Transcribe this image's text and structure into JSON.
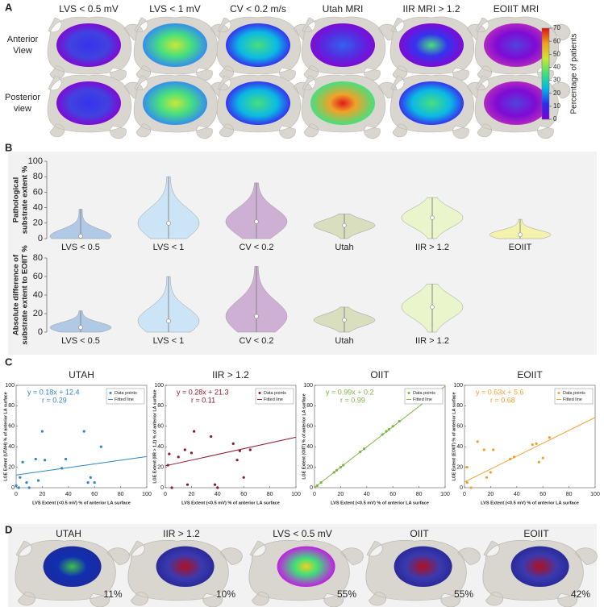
{
  "panel_labels": [
    "A",
    "B",
    "C",
    "D"
  ],
  "panel_a": {
    "columns": [
      "LVS < 0.5 mV",
      "LVS < 1 mV",
      "CV < 0.2 m/s",
      "Utah MRI",
      "IIR MRI > 1.2",
      "EOIIT MRI"
    ],
    "rows": [
      [
        "Anterior",
        "View"
      ],
      [
        "Posterior",
        "view"
      ]
    ],
    "colorbar": {
      "label": "Percentage of patients",
      "lim": [
        0,
        70
      ],
      "ticks": [
        0,
        10,
        20,
        30,
        40,
        50,
        60,
        70
      ],
      "colors": [
        "#7a00d4",
        "#2b2bf0",
        "#00b7e6",
        "#3fe07a",
        "#c8e830",
        "#f0a020",
        "#e01010"
      ]
    }
  },
  "chart_data": [
    {
      "type": "violin",
      "ylabel": [
        "Pathological",
        "substrate extent %"
      ],
      "categories": [
        "LVS < 0.5",
        "LVS < 1",
        "CV < 0.2",
        "Utah",
        "IIR > 1.2",
        "EOIIT"
      ],
      "min": [
        0,
        0,
        0,
        0,
        0,
        0
      ],
      "median": [
        3,
        20,
        22,
        17,
        27,
        5
      ],
      "max": [
        38,
        80,
        72,
        32,
        53,
        25
      ],
      "colors": [
        "#a9c4e4",
        "#c7e3f7",
        "#c9a9cf",
        "#d6dcb8",
        "#e9f5c6",
        "#f3f3a6"
      ],
      "ylim": [
        0,
        100
      ],
      "yticks": [
        0,
        20,
        40,
        60,
        80,
        100
      ]
    },
    {
      "type": "violin",
      "ylabel": [
        "Absolute difference of",
        "substrate extent to EOIIT %"
      ],
      "categories": [
        "LVS < 0.5",
        "LVS < 1",
        "CV < 0.2",
        "Utah",
        "IIR > 1.2"
      ],
      "min": [
        0,
        0,
        0,
        0,
        0
      ],
      "median": [
        5,
        12,
        17,
        13,
        27
      ],
      "max": [
        23,
        60,
        71,
        27,
        52
      ],
      "colors": [
        "#a9c4e4",
        "#c7e3f7",
        "#c9a9cf",
        "#d6dcb8",
        "#e9f5c6"
      ],
      "ylim": [
        0,
        80
      ],
      "yticks": [
        0,
        20,
        40,
        60,
        80
      ]
    },
    {
      "type": "scatter",
      "title": "UTAH",
      "xlabel": "LVS Extent (<0.5 mV) % of anterior LA surface",
      "ylabel": "LGE Extent (UTAH) % of anterior LA surface",
      "series": [
        {
          "name": "Data points",
          "color": "#2e86c1",
          "x": [
            0,
            2,
            3,
            5,
            8,
            10,
            15,
            17,
            20,
            22,
            35,
            38,
            52,
            55,
            57,
            60,
            65
          ],
          "values": [
            2,
            0,
            10,
            25,
            5,
            0,
            28,
            7,
            55,
            27,
            19,
            28,
            55,
            5,
            10,
            5,
            40
          ]
        }
      ],
      "fit": {
        "name": "Fitted line",
        "slope": 0.18,
        "intercept": 12.4
      },
      "annotations": [
        "y = 0.18x + 12.4",
        "r = 0.29"
      ],
      "xlim": [
        0,
        100
      ],
      "ylim": [
        0,
        100
      ],
      "xticks": [
        0,
        20,
        40,
        60,
        80,
        100
      ],
      "yticks": [
        0,
        20,
        40,
        60,
        80,
        100
      ]
    },
    {
      "type": "scatter",
      "title": "IIR > 1.2",
      "xlabel": "LVS Extent (<0.5 mV) % of anterior LA surface",
      "ylabel": "LGE Extent (IIR > 1.2) % of anterior LA surface",
      "series": [
        {
          "name": "Data points",
          "color": "#8b1a2b",
          "x": [
            2,
            3,
            5,
            10,
            15,
            17,
            20,
            22,
            35,
            38,
            40,
            52,
            55,
            57,
            60,
            65
          ],
          "values": [
            22,
            33,
            0,
            30,
            37,
            3,
            34,
            55,
            50,
            3,
            0,
            43,
            27,
            36,
            10,
            37
          ]
        }
      ],
      "fit": {
        "name": "Fitted line",
        "slope": 0.28,
        "intercept": 21.3
      },
      "annotations": [
        "y = 0.28x + 21.3",
        "r = 0.11"
      ],
      "xlim": [
        0,
        100
      ],
      "ylim": [
        0,
        100
      ],
      "xticks": [
        0,
        20,
        40,
        60,
        80,
        100
      ],
      "yticks": [
        0,
        20,
        40,
        60,
        80,
        100
      ]
    },
    {
      "type": "scatter",
      "title": "OIIT",
      "xlabel": "LVS Extent (<0.5 mV) % of anterior LA surface",
      "ylabel": "LGE Extent (OIIT) % of anterior LA surface",
      "series": [
        {
          "name": "Data points",
          "color": "#7cb342",
          "x": [
            2,
            5,
            15,
            17,
            20,
            22,
            35,
            38,
            52,
            55,
            57,
            60,
            65
          ],
          "values": [
            2,
            5,
            15,
            17,
            20,
            22,
            35,
            38,
            52,
            55,
            57,
            60,
            65
          ]
        }
      ],
      "fit": {
        "name": "Fitted line",
        "slope": 0.99,
        "intercept": 0.2
      },
      "annotations": [
        "y = 0.99x + 0.2",
        "r = 0.99"
      ],
      "xlim": [
        0,
        100
      ],
      "ylim": [
        0,
        100
      ],
      "xticks": [
        0,
        20,
        40,
        60,
        80,
        100
      ],
      "yticks": [
        0,
        20,
        40,
        60,
        80,
        100
      ]
    },
    {
      "type": "scatter",
      "title": "EOIIT",
      "xlabel": "LVS Extent (<0.5 mV) % of anterior LA surface",
      "ylabel": "LGE Extent (EOIIT) % of anterior LA surface",
      "series": [
        {
          "name": "Data points",
          "color": "#f0a030",
          "x": [
            2,
            2,
            5,
            10,
            15,
            17,
            20,
            22,
            35,
            38,
            52,
            55,
            57,
            60,
            65
          ],
          "values": [
            5,
            20,
            0,
            45,
            37,
            10,
            15,
            37,
            28,
            30,
            42,
            43,
            25,
            29,
            49
          ]
        }
      ],
      "fit": {
        "name": "Fitted line",
        "slope": 0.63,
        "intercept": 5.6
      },
      "annotations": [
        "y = 0.63x + 5.6",
        "r = 0.68"
      ],
      "xlim": [
        0,
        100
      ],
      "ylim": [
        0,
        100
      ],
      "xticks": [
        0,
        20,
        40,
        60,
        80,
        100
      ],
      "yticks": [
        0,
        20,
        40,
        60,
        80,
        100
      ]
    }
  ],
  "panel_d": {
    "items": [
      {
        "title": "UTAH",
        "value": "11%"
      },
      {
        "title": "IIR > 1.2",
        "value": "10%"
      },
      {
        "title": "LVS < 0.5 mV",
        "value": "55%"
      },
      {
        "title": "OIIT",
        "value": "55%"
      },
      {
        "title": "EOIIT",
        "value": "42%"
      }
    ]
  }
}
